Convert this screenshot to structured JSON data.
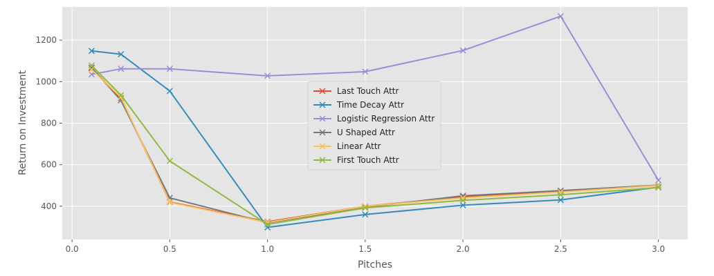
{
  "chart_data": {
    "type": "line",
    "title": "",
    "xlabel": "Pitches",
    "ylabel": "Return on Investment",
    "xlim": [
      -0.05,
      3.15
    ],
    "ylim": [
      240,
      1360
    ],
    "x_ticks": [
      0.0,
      0.5,
      1.0,
      1.5,
      2.0,
      2.5,
      3.0
    ],
    "x_tick_labels": [
      "0.0",
      "0.5",
      "1.0",
      "1.5",
      "2.0",
      "2.5",
      "3.0"
    ],
    "y_ticks": [
      400,
      600,
      800,
      1000,
      1200
    ],
    "y_tick_labels": [
      "400",
      "600",
      "800",
      "1000",
      "1200"
    ],
    "grid": true,
    "legend_position": "center",
    "marker": "x",
    "x": [
      0.1,
      0.25,
      0.5,
      1.0,
      1.5,
      2.0,
      2.5,
      3.0
    ],
    "series": [
      {
        "name": "Last Touch Attr",
        "color": "#E24A33",
        "values": [
          1065,
          920,
          420,
          325,
          400,
          445,
          470,
          500
        ]
      },
      {
        "name": "Time Decay Attr",
        "color": "#348ABD",
        "values": [
          1148,
          1132,
          955,
          298,
          360,
          405,
          430,
          492
        ]
      },
      {
        "name": "Logistic Regression Attr",
        "color": "#988ED5",
        "values": [
          1035,
          1062,
          1062,
          1028,
          1048,
          1150,
          1315,
          525
        ]
      },
      {
        "name": "U Shaped Attr",
        "color": "#777777",
        "values": [
          1068,
          910,
          440,
          320,
          395,
          450,
          475,
          502
        ]
      },
      {
        "name": "Linear Attr",
        "color": "#FBC15E",
        "values": [
          1058,
          925,
          418,
          322,
          400,
          440,
          468,
          500
        ]
      },
      {
        "name": "First Touch Attr",
        "color": "#8EBA42",
        "values": [
          1078,
          935,
          618,
          312,
          392,
          428,
          455,
          490
        ]
      }
    ]
  }
}
